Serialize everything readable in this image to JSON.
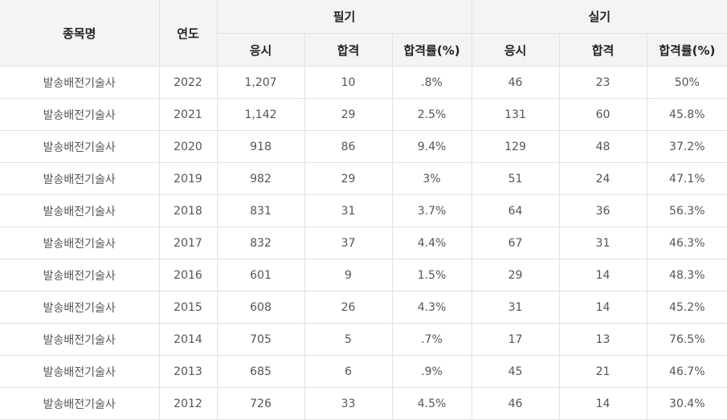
{
  "table": {
    "headers": {
      "item_name": "종목명",
      "year": "연도",
      "written_group": "필기",
      "practical_group": "실기",
      "written": {
        "applicants": "응시",
        "passed": "합격",
        "pass_rate": "합격률(%)"
      },
      "practical": {
        "applicants": "응시",
        "passed": "합격",
        "pass_rate": "합격률(%)"
      }
    },
    "rows": [
      {
        "name": "발송배전기술사",
        "year": "2022",
        "w_app": "1,207",
        "w_pass": "10",
        "w_rate": ".8%",
        "p_app": "46",
        "p_pass": "23",
        "p_rate": "50%"
      },
      {
        "name": "발송배전기술사",
        "year": "2021",
        "w_app": "1,142",
        "w_pass": "29",
        "w_rate": "2.5%",
        "p_app": "131",
        "p_pass": "60",
        "p_rate": "45.8%"
      },
      {
        "name": "발송배전기술사",
        "year": "2020",
        "w_app": "918",
        "w_pass": "86",
        "w_rate": "9.4%",
        "p_app": "129",
        "p_pass": "48",
        "p_rate": "37.2%"
      },
      {
        "name": "발송배전기술사",
        "year": "2019",
        "w_app": "982",
        "w_pass": "29",
        "w_rate": "3%",
        "p_app": "51",
        "p_pass": "24",
        "p_rate": "47.1%"
      },
      {
        "name": "발송배전기술사",
        "year": "2018",
        "w_app": "831",
        "w_pass": "31",
        "w_rate": "3.7%",
        "p_app": "64",
        "p_pass": "36",
        "p_rate": "56.3%"
      },
      {
        "name": "발송배전기술사",
        "year": "2017",
        "w_app": "832",
        "w_pass": "37",
        "w_rate": "4.4%",
        "p_app": "67",
        "p_pass": "31",
        "p_rate": "46.3%"
      },
      {
        "name": "발송배전기술사",
        "year": "2016",
        "w_app": "601",
        "w_pass": "9",
        "w_rate": "1.5%",
        "p_app": "29",
        "p_pass": "14",
        "p_rate": "48.3%"
      },
      {
        "name": "발송배전기술사",
        "year": "2015",
        "w_app": "608",
        "w_pass": "26",
        "w_rate": "4.3%",
        "p_app": "31",
        "p_pass": "14",
        "p_rate": "45.2%"
      },
      {
        "name": "발송배전기술사",
        "year": "2014",
        "w_app": "705",
        "w_pass": "5",
        "w_rate": ".7%",
        "p_app": "17",
        "p_pass": "13",
        "p_rate": "76.5%"
      },
      {
        "name": "발송배전기술사",
        "year": "2013",
        "w_app": "685",
        "w_pass": "6",
        "w_rate": ".9%",
        "p_app": "45",
        "p_pass": "21",
        "p_rate": "46.7%"
      },
      {
        "name": "발송배전기술사",
        "year": "2012",
        "w_app": "726",
        "w_pass": "33",
        "w_rate": "4.5%",
        "p_app": "46",
        "p_pass": "14",
        "p_rate": "30.4%"
      }
    ]
  }
}
